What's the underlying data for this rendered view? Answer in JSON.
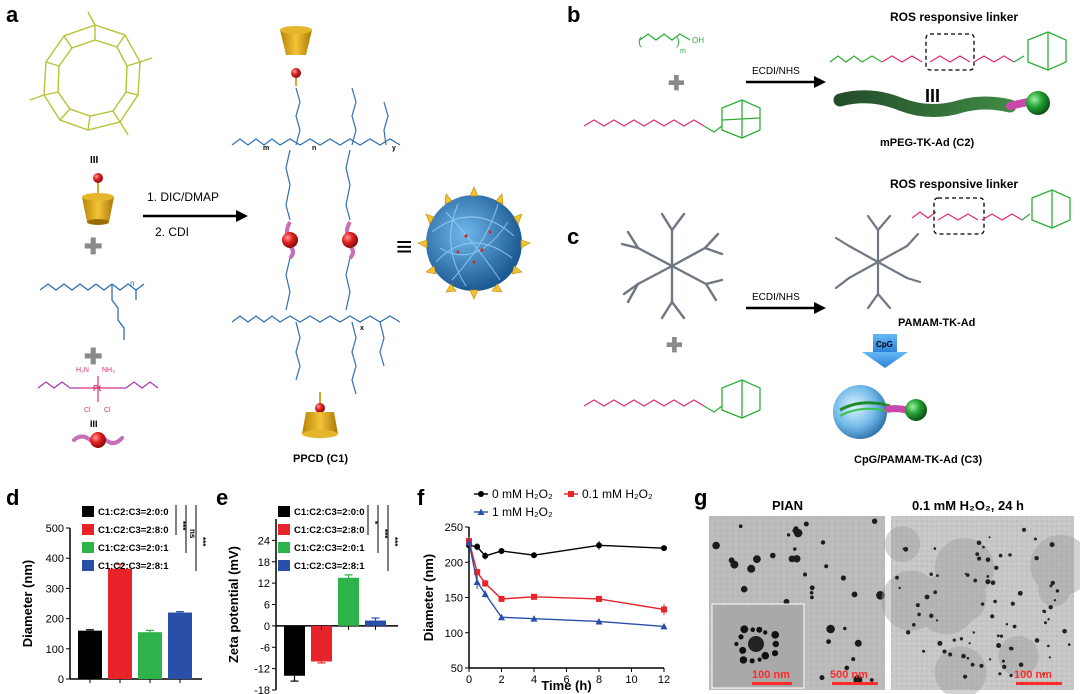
{
  "panels": {
    "a": {
      "letter": "a",
      "roman_top": "III",
      "roman_bottom": "III",
      "step1": "1. DIC/DMAP",
      "step2": "2. CDI",
      "equiv": "≡",
      "product_label": "PPCD (C1)",
      "pt_labels": [
        "H₃N",
        "NH₃",
        "Pt",
        "Cl",
        "Cl"
      ],
      "poly_subscripts": [
        "m",
        "n",
        "x",
        "y"
      ]
    },
    "b": {
      "letter": "b",
      "title": "ROS responsive linker",
      "reagent": "ECDI/NHS",
      "roman": "III",
      "product_label": "mPEG-TK-Ad (C2)",
      "peg_sub": "m"
    },
    "c": {
      "letter": "c",
      "title": "ROS responsive linker",
      "reagent": "ECDI/NHS",
      "product_label": "PAMAM-TK-Ad",
      "cpg": "CpG",
      "final_label": "CpG/PAMAM-TK-Ad (C3)"
    },
    "g": {
      "letter": "g",
      "title_left": "PIAN",
      "title_right": "0.1 mM H₂O₂, 24 h",
      "scale_inset": "100 nm",
      "scale_left": "500 nm",
      "scale_right": "100 nm"
    }
  },
  "colors": {
    "cd": "#b8c235",
    "polymer": "#2f6fb3",
    "pt_prodrug": "#b03bb0",
    "linker": "#e0317a",
    "ad": "#2fae3a",
    "dendrimer": "#6f7782",
    "bar_black": "#000000",
    "bar_red": "#e8242a",
    "bar_green": "#2db34a",
    "bar_blue": "#2a4fa8"
  },
  "chart_data": [
    {
      "panel": "d",
      "type": "bar",
      "ylabel": "Diameter (nm)",
      "ylim": [
        0,
        500
      ],
      "yticks": [
        0,
        100,
        200,
        300,
        400,
        500
      ],
      "categories": [
        "C1:C2:C3=2:0:0",
        "C1:C2:C3=2:8:0",
        "C1:C2:C3=2:0:1",
        "C1:C2:C3=2:8:1"
      ],
      "values": [
        160,
        365,
        155,
        220
      ],
      "errors": [
        3,
        15,
        6,
        3
      ],
      "colors": [
        "#000000",
        "#e8242a",
        "#2db34a",
        "#2a4fa8"
      ],
      "significance": [
        "***",
        "ns",
        "***"
      ]
    },
    {
      "panel": "e",
      "type": "bar",
      "ylabel": "Zeta potential (mV)",
      "ylim": [
        -18,
        30
      ],
      "yticks": [
        -18,
        -12,
        -6,
        0,
        6,
        12,
        18,
        24
      ],
      "categories": [
        "C1:C2:C3=2:0:0",
        "C1:C2:C3=2:8:0",
        "C1:C2:C3=2:0:1",
        "C1:C2:C3=2:8:1"
      ],
      "values": [
        -14,
        -10,
        13.5,
        1.5
      ],
      "errors": [
        1.5,
        0.4,
        0.8,
        0.7
      ],
      "colors": [
        "#000000",
        "#e8242a",
        "#2db34a",
        "#2a4fa8"
      ],
      "significance": [
        "*",
        "***",
        "***"
      ]
    },
    {
      "panel": "f",
      "type": "line",
      "xlabel": "Time (h)",
      "ylabel": "Diameter (nm)",
      "xlim": [
        0,
        12
      ],
      "ylim": [
        50,
        250
      ],
      "xticks": [
        0,
        2,
        4,
        6,
        8,
        10,
        12
      ],
      "yticks": [
        50,
        100,
        150,
        200,
        250
      ],
      "series": [
        {
          "name": "0 mM H₂O₂",
          "color": "#000000",
          "marker": "circle",
          "x": [
            0,
            0.5,
            1,
            2,
            4,
            8,
            12
          ],
          "y": [
            224,
            222,
            209,
            216,
            210,
            224,
            220
          ],
          "err": [
            5,
            5,
            5,
            4,
            4,
            6,
            3
          ]
        },
        {
          "name": "0.1 mM H₂O₂",
          "color": "#e8242a",
          "marker": "square",
          "x": [
            0,
            0.5,
            1,
            2,
            4,
            8,
            12
          ],
          "y": [
            230,
            186,
            170,
            148,
            151,
            148,
            133
          ],
          "err": [
            6,
            5,
            5,
            3,
            2,
            2,
            8
          ]
        },
        {
          "name": "1 mM H₂O₂",
          "color": "#2a4fa8",
          "marker": "triangle",
          "x": [
            0,
            0.5,
            1,
            2,
            4,
            8,
            12
          ],
          "y": [
            228,
            172,
            155,
            122,
            120,
            116,
            109
          ],
          "err": [
            6,
            10,
            5,
            2,
            2,
            3,
            2
          ]
        }
      ]
    }
  ]
}
